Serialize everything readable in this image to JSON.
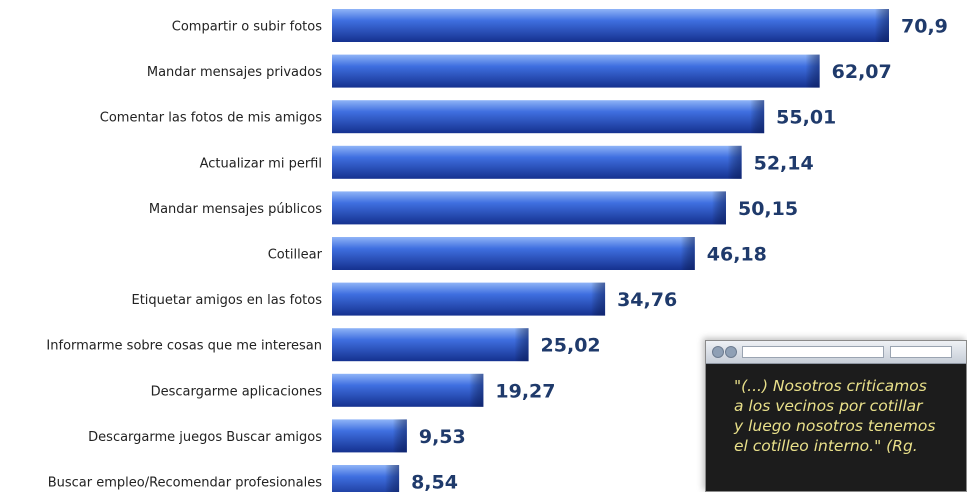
{
  "chart_data": {
    "type": "bar",
    "orientation": "horizontal",
    "categories": [
      "Compartir o subir fotos",
      "Mandar mensajes privados",
      "Comentar las fotos de mis amigos",
      "Actualizar mi perfil",
      "Mandar mensajes públicos",
      "Cotillear",
      "Etiquetar amigos en las fotos",
      "Informarme sobre cosas que me interesan",
      "Descargarme aplicaciones",
      "Descargarme juegos Buscar amigos",
      "Buscar empleo/Recomendar profesionales"
    ],
    "values": [
      70.9,
      62.07,
      55.01,
      52.14,
      50.15,
      46.18,
      34.76,
      25.02,
      19.27,
      9.53,
      8.54
    ],
    "value_labels": [
      "70,9",
      "62,07",
      "55,01",
      "52,14",
      "50,15",
      "46,18",
      "34,76",
      "25,02",
      "19,27",
      "9,53",
      "8,54"
    ],
    "title": "",
    "xlabel": "",
    "ylabel": "",
    "xlim": [
      0,
      70.9
    ],
    "grid": false,
    "colors": {
      "bar_light": "#6f9bf0",
      "bar_mid": "#2f5fd6",
      "bar_dark": "#15318f",
      "value_text": "#1f3a6b"
    }
  },
  "popup": {
    "lines": [
      "\"(...) Nosotros criticamos",
      "a los vecinos por cotillar",
      "y luego nosotros tenemos",
      "el cotilleo interno.\" (Rg."
    ],
    "colors": {
      "background": "#1c1c1c",
      "text": "#e9e08a"
    }
  }
}
